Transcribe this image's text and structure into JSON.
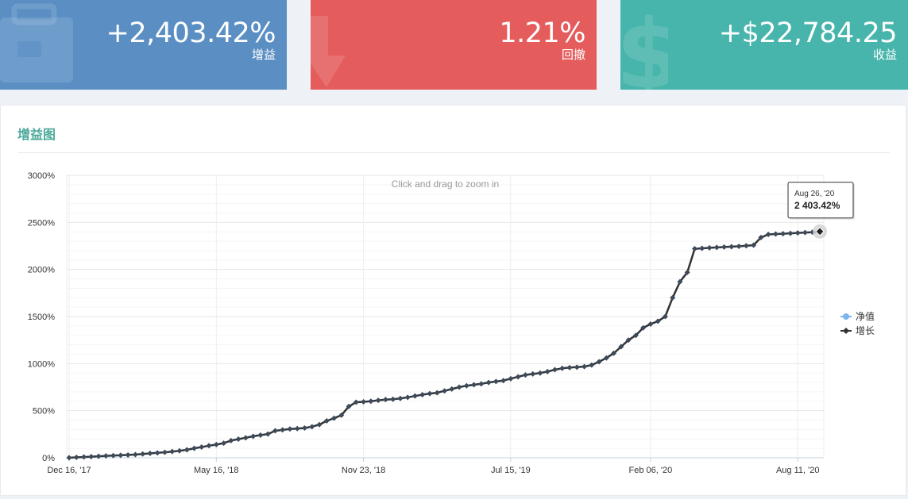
{
  "cards": [
    {
      "value": "+2,403.42%",
      "label": "增益",
      "icon": "briefcase-icon",
      "color": "#5b8fc4"
    },
    {
      "value": "1.21%",
      "label": "回撤",
      "icon": "arrow-down-icon",
      "color": "#e45c5c"
    },
    {
      "value": "+$22,784.25",
      "label": "收益",
      "icon": "dollar-icon",
      "color": "#47b5ab"
    }
  ],
  "panel": {
    "title": "增益图"
  },
  "chart_data": {
    "type": "line",
    "zoom_hint": "Click and drag to zoom in",
    "x_ticks": [
      "Dec 16, '17",
      "May 16, '18",
      "Nov 23, '18",
      "Jul 15, '19",
      "Feb 06, '20",
      "Aug 11, '20"
    ],
    "y_ticks": [
      "0%",
      "500%",
      "1000%",
      "1500%",
      "2000%",
      "2500%",
      "3000%"
    ],
    "ylim": [
      0,
      3000
    ],
    "grid": true,
    "legend_position": "right",
    "series": [
      {
        "name": "净值",
        "color": "#7cb5ec",
        "values": []
      },
      {
        "name": "增长",
        "color": "#333333",
        "values": [
          0,
          4,
          8,
          12,
          16,
          20,
          23,
          26,
          30,
          34,
          40,
          46,
          52,
          58,
          66,
          74,
          84,
          100,
          114,
          128,
          140,
          155,
          182,
          198,
          212,
          228,
          240,
          252,
          286,
          296,
          306,
          310,
          316,
          330,
          352,
          392,
          420,
          452,
          545,
          590,
          594,
          600,
          610,
          618,
          622,
          630,
          642,
          656,
          670,
          682,
          690,
          710,
          730,
          750,
          765,
          775,
          785,
          800,
          810,
          820,
          840,
          860,
          880,
          890,
          900,
          915,
          935,
          950,
          958,
          962,
          968,
          985,
          1020,
          1060,
          1110,
          1180,
          1250,
          1300,
          1380,
          1420,
          1450,
          1500,
          1700,
          1870,
          1970,
          2220,
          2225,
          2230,
          2234,
          2238,
          2242,
          2246,
          2252,
          2258,
          2340,
          2372,
          2376,
          2380,
          2384,
          2388,
          2392,
          2396,
          2403.42
        ]
      }
    ],
    "tooltip": {
      "date": "Aug 26, '20",
      "value": "2 403.42%"
    }
  }
}
